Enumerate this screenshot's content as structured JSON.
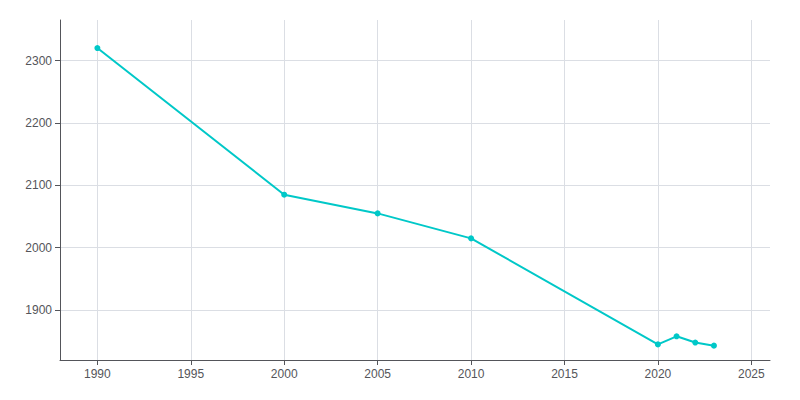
{
  "chart_data": {
    "type": "line",
    "x": [
      1990,
      2000,
      2005,
      2010,
      2020,
      2021,
      2022,
      2023
    ],
    "values": [
      2320,
      2085,
      2055,
      2015,
      1845,
      1858,
      1848,
      1843
    ],
    "color": "#00c8c8",
    "marker": "circle",
    "xlim": [
      1988,
      2026
    ],
    "ylim": [
      1820,
      2365
    ],
    "xticks": [
      1990,
      1995,
      2000,
      2005,
      2010,
      2015,
      2020,
      2025
    ],
    "yticks": [
      1900,
      2000,
      2100,
      2200,
      2300
    ],
    "grid": true
  }
}
